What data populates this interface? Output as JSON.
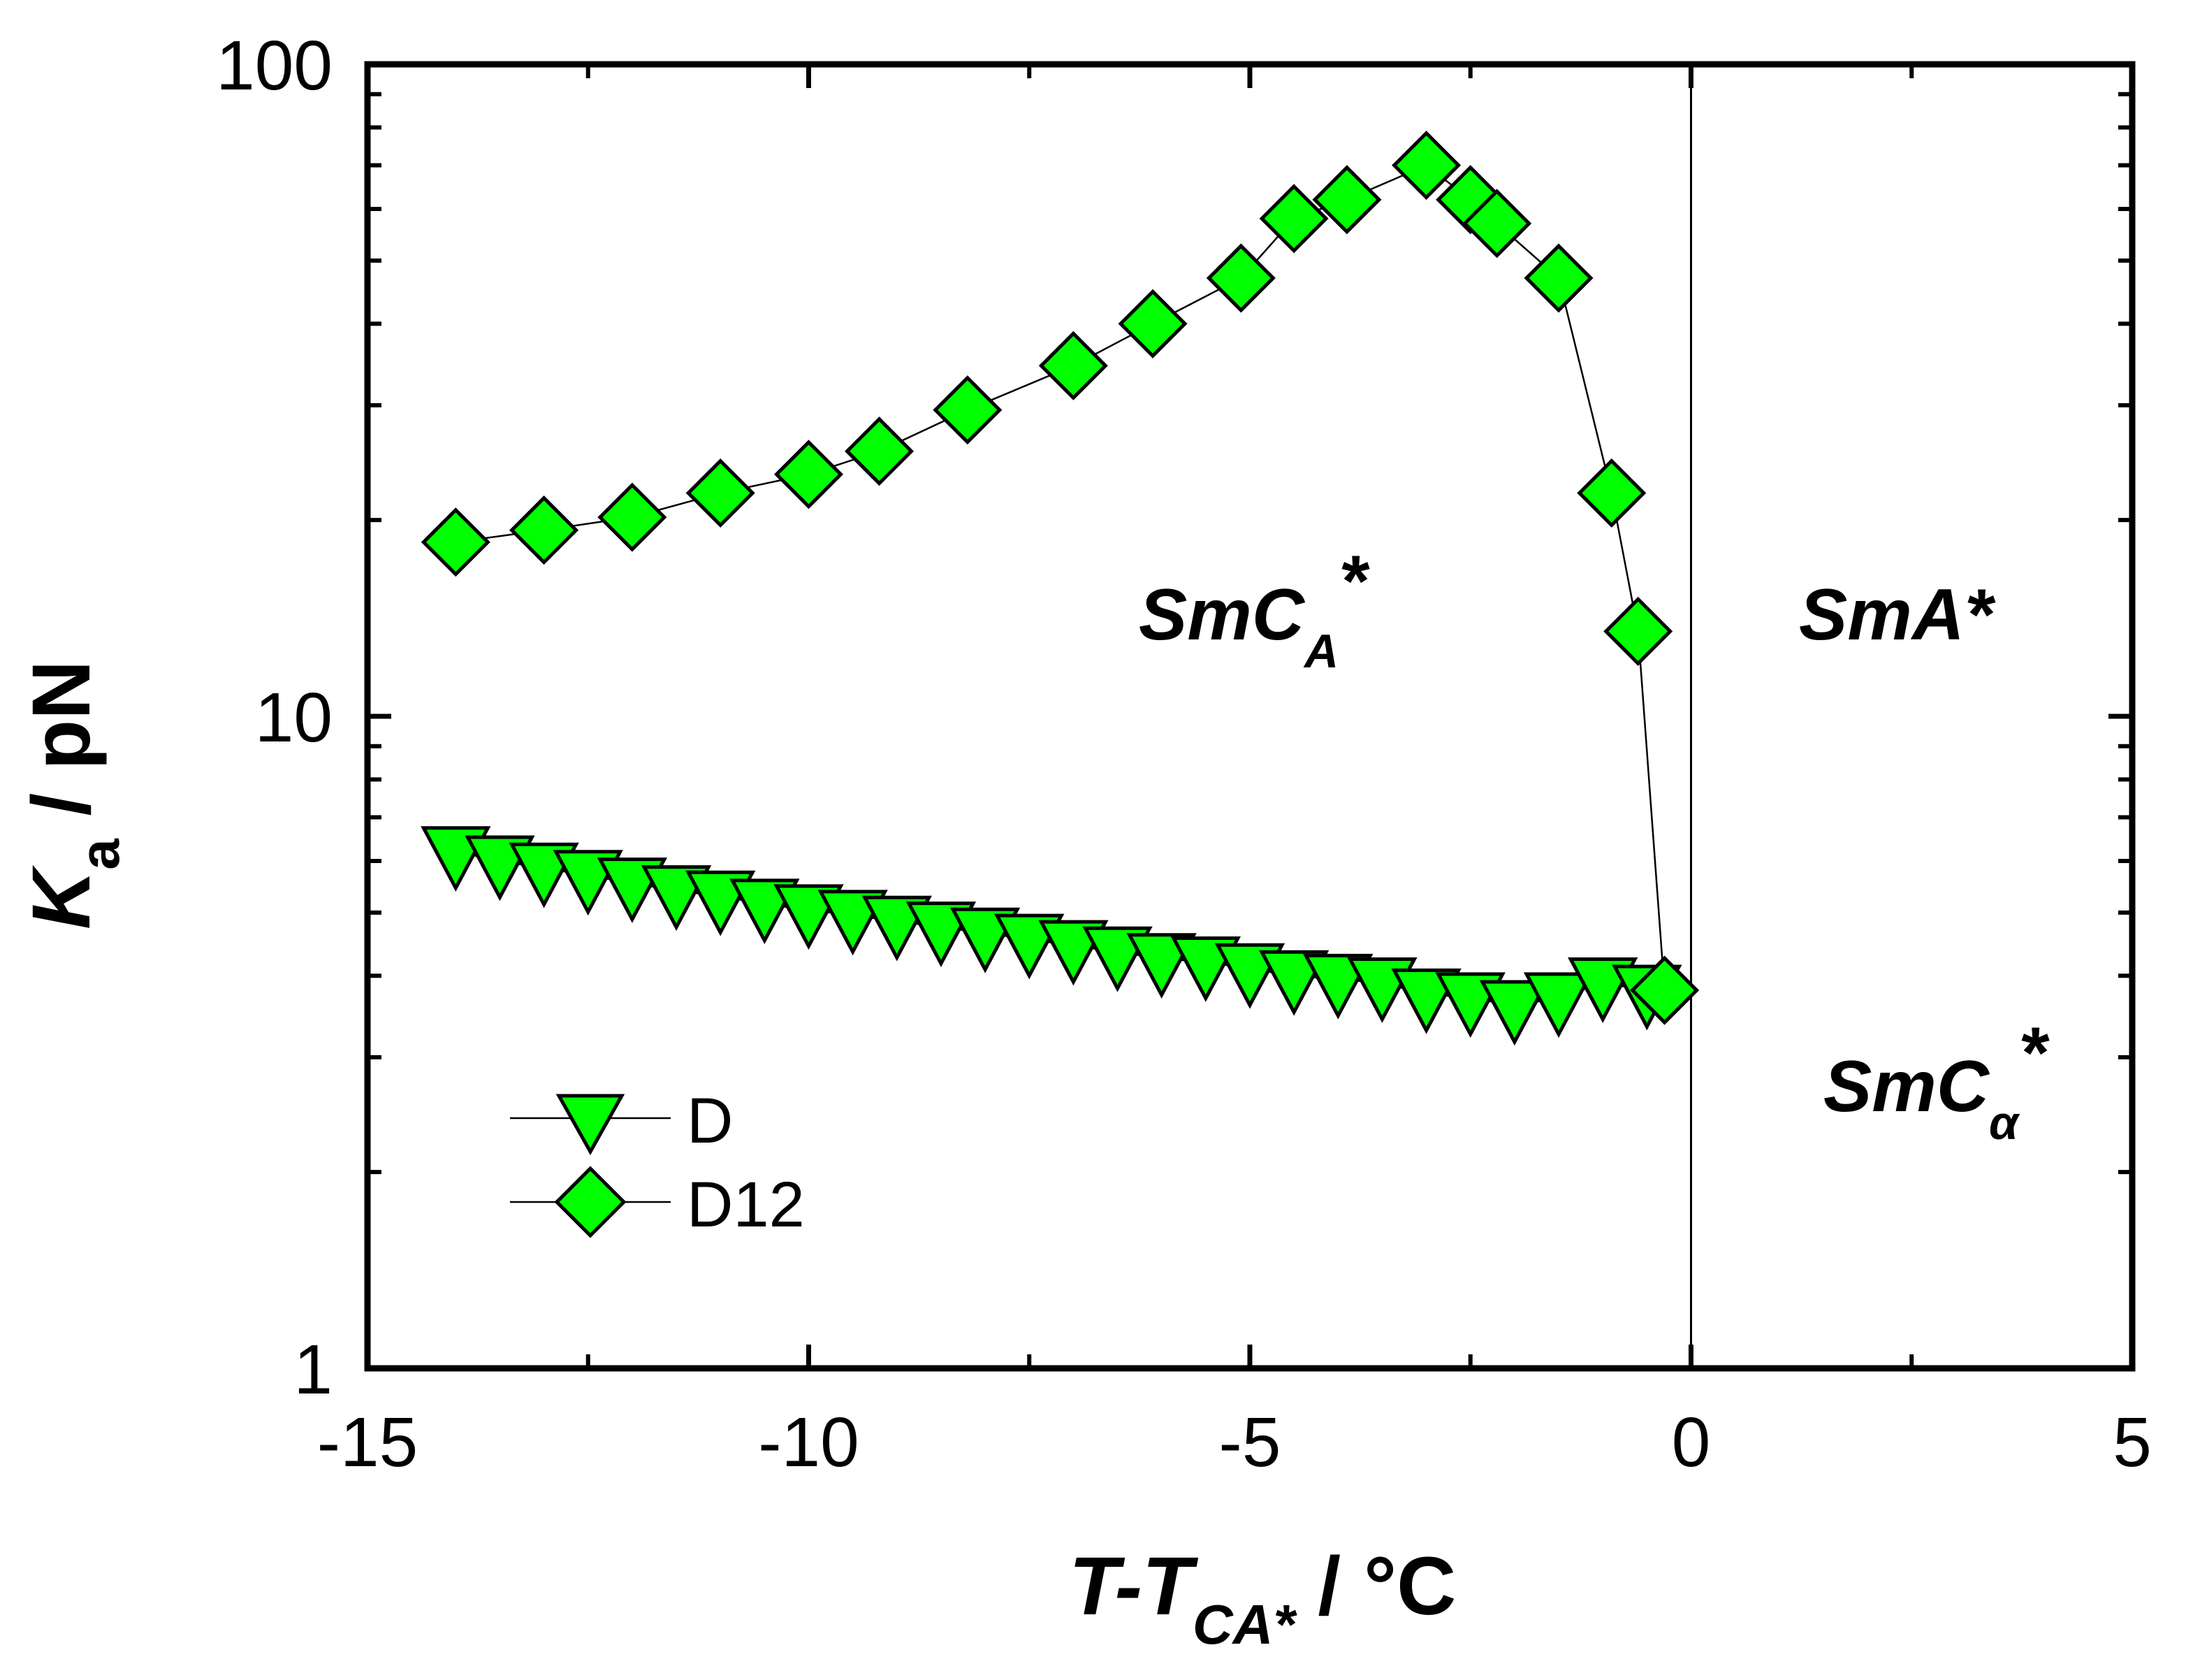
{
  "chart_data": {
    "type": "scatter",
    "title": "",
    "xlabel": {
      "main": "T-T",
      "sub": "CA*",
      "unit": " / °C"
    },
    "ylabel": {
      "main": "K",
      "sub": "a",
      "unit": " / pN"
    },
    "xscale": "linear",
    "yscale": "log",
    "xlim": [
      -15,
      5
    ],
    "ylim": [
      1,
      100
    ],
    "xticks": [
      -15,
      -10,
      -5,
      0,
      5
    ],
    "xtick_labels": [
      "-15",
      "-10",
      "-5",
      "0",
      "5"
    ],
    "yticks": [
      1,
      10,
      100
    ],
    "ytick_labels": [
      "1",
      "10",
      "100"
    ],
    "vertical_line_x": 0,
    "phase_labels": [
      {
        "main": "SmC",
        "sub": "A",
        "sup": "*"
      },
      {
        "main": "SmA",
        "sub": "",
        "sup": "*"
      },
      {
        "main": "SmC",
        "sub": "α",
        "sup": "*"
      }
    ],
    "series": [
      {
        "name": "D",
        "marker": "triangle-down",
        "color": "#00ff00",
        "x": [
          -14.0,
          -13.5,
          -13.0,
          -12.5,
          -12.0,
          -11.5,
          -11.0,
          -10.5,
          -10.0,
          -9.5,
          -9.0,
          -8.5,
          -8.0,
          -7.5,
          -7.0,
          -6.5,
          -6.0,
          -5.5,
          -5.0,
          -4.5,
          -4.0,
          -3.5,
          -3.0,
          -2.5,
          -2.0,
          -1.5,
          -1.0,
          -0.5
        ],
        "y": [
          6.2,
          6.0,
          5.85,
          5.7,
          5.55,
          5.4,
          5.3,
          5.15,
          5.05,
          4.95,
          4.85,
          4.75,
          4.65,
          4.55,
          4.45,
          4.35,
          4.25,
          4.2,
          4.1,
          4.0,
          3.95,
          3.9,
          3.75,
          3.7,
          3.6,
          3.7,
          3.9,
          3.8
        ]
      },
      {
        "name": "D12",
        "marker": "diamond",
        "color": "#00ff00",
        "x": [
          -14.0,
          -13.0,
          -12.0,
          -11.0,
          -10.0,
          -9.2,
          -8.2,
          -7.0,
          -6.1,
          -5.1,
          -4.5,
          -3.9,
          -3.0,
          -2.5,
          -2.2,
          -1.5,
          -0.9,
          -0.6,
          -0.3
        ],
        "y": [
          18.5,
          19.3,
          20.2,
          22.0,
          23.5,
          25.5,
          29.5,
          34.5,
          40.0,
          47.0,
          58.0,
          62.0,
          70.0,
          62.0,
          57.0,
          47.0,
          22.0,
          13.5,
          3.8
        ]
      }
    ],
    "legend": {
      "position": "bottom-left",
      "entries": [
        "D",
        "D12"
      ]
    }
  }
}
